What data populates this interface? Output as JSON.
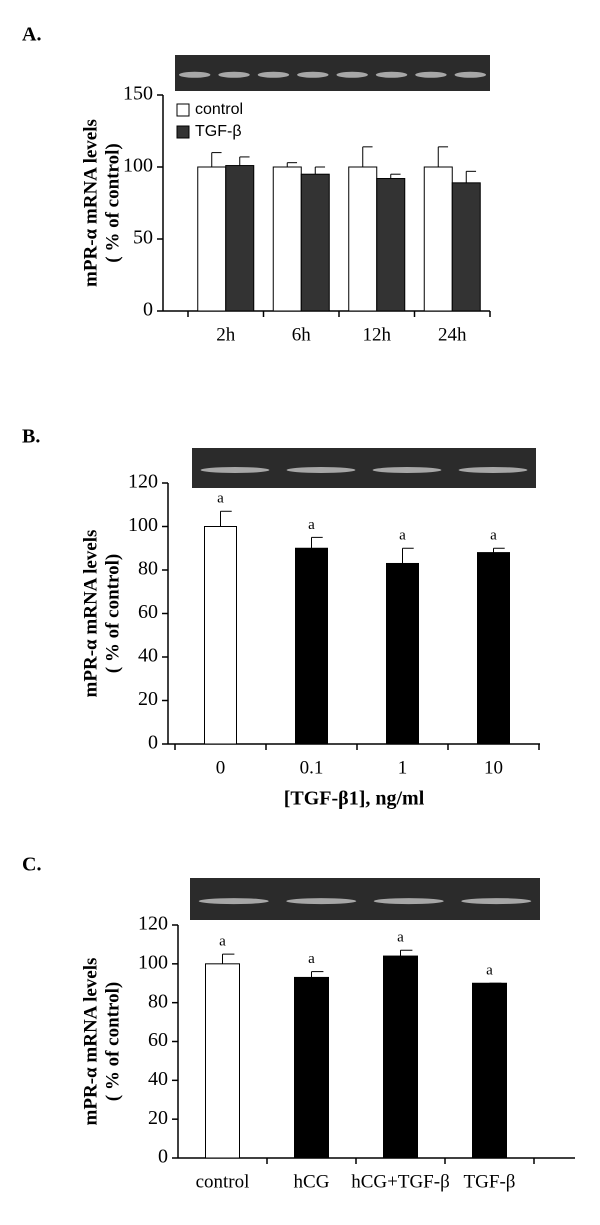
{
  "chart_data": [
    {
      "type": "bar",
      "panel_label": "A.",
      "ylabel": [
        "mPR-α  mRNA levels",
        "( % of control)"
      ],
      "categories": [
        "2h",
        "6h",
        "12h",
        "24h"
      ],
      "series": [
        {
          "name": "control",
          "color": "#ffffff",
          "values": [
            100,
            100,
            100,
            100
          ],
          "errors": [
            10,
            3,
            14,
            14
          ]
        },
        {
          "name": "TGF-β",
          "color": "#333333",
          "values": [
            101,
            95,
            92,
            89
          ],
          "errors": [
            6,
            5,
            3,
            8
          ]
        }
      ],
      "ylim": [
        0,
        150
      ],
      "yticks": [
        0,
        50,
        100,
        150
      ],
      "legend": "top-left"
    },
    {
      "type": "bar",
      "panel_label": "B.",
      "ylabel": [
        "mPR-α  mRNA levels",
        "( % of control)"
      ],
      "xlabel": "[TGF-β1], ng/ml",
      "categories": [
        "0",
        "0.1",
        "1",
        "10"
      ],
      "values": [
        100,
        90,
        83,
        88
      ],
      "errors": [
        7,
        5,
        7,
        2
      ],
      "colors": [
        "#ffffff",
        "#000000",
        "#000000",
        "#000000"
      ],
      "annotations": [
        "a",
        "a",
        "a",
        "a"
      ],
      "ylim": [
        0,
        120
      ],
      "yticks": [
        0,
        20,
        40,
        60,
        80,
        100,
        120
      ]
    },
    {
      "type": "bar",
      "panel_label": "C.",
      "ylabel": [
        "mPR-α  mRNA levels",
        "( % of control)"
      ],
      "categories": [
        "control",
        "hCG",
        "hCG+TGF-β",
        "TGF-β"
      ],
      "values": [
        100,
        93,
        104,
        90
      ],
      "errors": [
        5,
        3,
        3,
        0
      ],
      "colors": [
        "#ffffff",
        "#000000",
        "#000000",
        "#000000"
      ],
      "annotations": [
        "a",
        "a",
        "a",
        "a"
      ],
      "ylim": [
        0,
        120
      ],
      "yticks": [
        0,
        20,
        40,
        60,
        80,
        100,
        120
      ]
    }
  ]
}
